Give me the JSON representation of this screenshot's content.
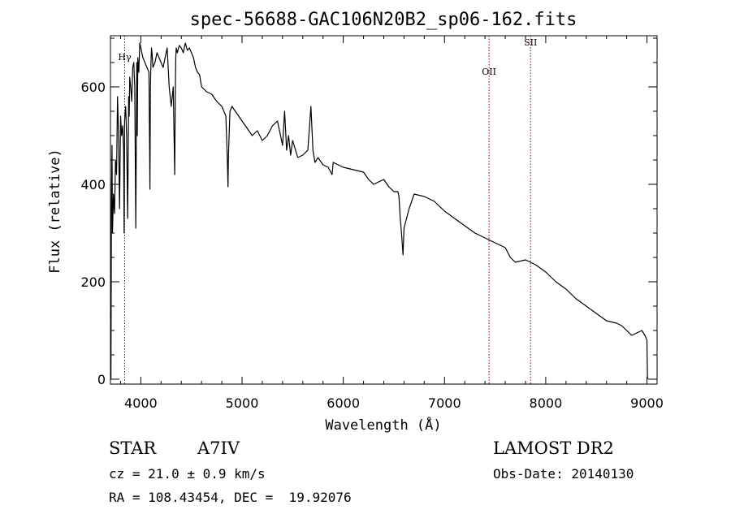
{
  "chart_data": {
    "type": "line",
    "title": "spec-56688-GAC106N20B2_sp06-162.fits",
    "xlabel": "Wavelength (Å)",
    "ylabel": "Flux (relative)",
    "xlim": [
      3700,
      9100
    ],
    "ylim": [
      -10,
      705
    ],
    "x_ticks": [
      4000,
      5000,
      6000,
      7000,
      8000,
      9000
    ],
    "y_ticks": [
      0,
      200,
      400,
      600
    ],
    "x_tick_labels": [
      "4000",
      "5000",
      "6000",
      "7000",
      "8000",
      "9000"
    ],
    "y_tick_labels": [
      "0",
      "200",
      "400",
      "600"
    ],
    "grid": false,
    "line_color": "#000000",
    "marker_color": "#8b0000",
    "lines": [
      {
        "label": "Hγ",
        "x": 3840,
        "label_y": 655
      },
      {
        "label": "OII",
        "x": 7440,
        "label_y": 625
      },
      {
        "label": "SII",
        "x": 7850,
        "label_y": 685
      }
    ],
    "series": [
      {
        "x": [
          3700,
          3705,
          3710,
          3715,
          3720,
          3730,
          3740,
          3750,
          3760,
          3770,
          3780,
          3790,
          3800,
          3810,
          3820,
          3830,
          3835,
          3840,
          3850,
          3860,
          3870,
          3880,
          3885,
          3890,
          3900,
          3910,
          3920,
          3930,
          3940,
          3950,
          3960,
          3965,
          3970,
          3980,
          3990,
          4000,
          4020,
          4040,
          4060,
          4080,
          4090,
          4095,
          4100,
          4105,
          4110,
          4120,
          4140,
          4160,
          4180,
          4200,
          4220,
          4240,
          4260,
          4280,
          4300,
          4320,
          4335,
          4340,
          4345,
          4350,
          4360,
          4380,
          4400,
          4420,
          4440,
          4460,
          4480,
          4500,
          4520,
          4540,
          4560,
          4580,
          4600,
          4650,
          4700,
          4750,
          4800,
          4840,
          4855,
          4861,
          4866,
          4880,
          4900,
          4950,
          5000,
          5050,
          5100,
          5150,
          5200,
          5250,
          5300,
          5350,
          5400,
          5420,
          5440,
          5460,
          5480,
          5500,
          5550,
          5600,
          5650,
          5680,
          5700,
          5720,
          5750,
          5800,
          5850,
          5890,
          5900,
          5950,
          6000,
          6100,
          6200,
          6250,
          6300,
          6400,
          6450,
          6500,
          6540,
          6550,
          6563,
          6575,
          6590,
          6600,
          6650,
          6700,
          6800,
          6900,
          7000,
          7100,
          7200,
          7300,
          7400,
          7500,
          7600,
          7650,
          7700,
          7800,
          7900,
          8000,
          8100,
          8200,
          8300,
          8400,
          8500,
          8600,
          8700,
          8750,
          8800,
          8850,
          8900,
          8950,
          8980,
          9000,
          9005
        ],
        "y": [
          140,
          0,
          350,
          480,
          300,
          380,
          340,
          450,
          420,
          580,
          500,
          350,
          540,
          500,
          520,
          470,
          300,
          530,
          560,
          500,
          330,
          580,
          540,
          620,
          600,
          570,
          640,
          650,
          600,
          310,
          650,
          500,
          660,
          630,
          690,
          680,
          660,
          650,
          640,
          630,
          390,
          600,
          650,
          680,
          670,
          640,
          650,
          670,
          660,
          650,
          640,
          660,
          680,
          600,
          560,
          600,
          420,
          580,
          660,
          680,
          670,
          685,
          680,
          670,
          690,
          675,
          680,
          670,
          660,
          640,
          630,
          625,
          600,
          590,
          585,
          570,
          560,
          540,
          450,
          395,
          460,
          550,
          560,
          545,
          530,
          515,
          500,
          510,
          490,
          500,
          520,
          530,
          480,
          550,
          470,
          500,
          460,
          490,
          455,
          460,
          470,
          560,
          470,
          445,
          455,
          440,
          435,
          420,
          445,
          440,
          435,
          430,
          425,
          410,
          400,
          410,
          395,
          385,
          385,
          375,
          330,
          300,
          255,
          310,
          350,
          380,
          375,
          365,
          345,
          330,
          315,
          300,
          290,
          280,
          270,
          250,
          240,
          245,
          235,
          220,
          200,
          185,
          165,
          150,
          135,
          120,
          115,
          110,
          100,
          90,
          95,
          100,
          90,
          80,
          0
        ]
      }
    ]
  },
  "info": {
    "object_type": "STAR",
    "subclass": "A7IV",
    "survey": "LAMOST DR2",
    "cz": "cz = 21.0 ± 0.9 km/s",
    "obs_date": "Obs-Date: 20140130",
    "coords": "RA = 108.43454, DEC =  19.92076"
  }
}
